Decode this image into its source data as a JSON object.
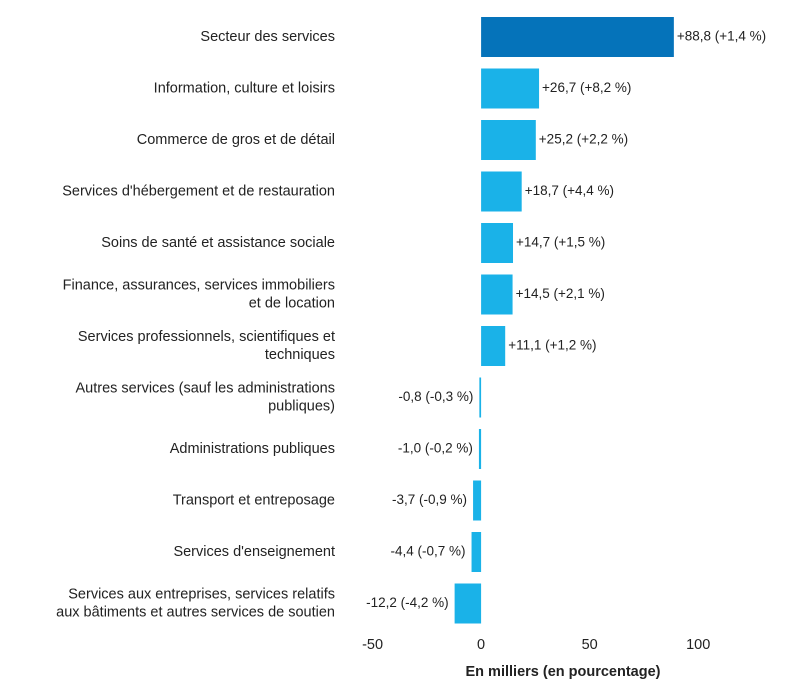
{
  "chart_data": {
    "type": "hbar",
    "categories": [
      "Secteur des services",
      "Information, culture et loisirs",
      "Commerce de gros et de détail",
      "Services d'hébergement et de restauration",
      "Soins de santé et assistance sociale",
      "Finance, assurances, services immobiliers\net de location",
      "Services professionnels, scientifiques et\ntechniques",
      "Autres services (sauf les administrations\npubliques)",
      "Administrations publiques",
      "Transport et entreposage",
      "Services d'enseignement",
      "Services aux entreprises, services relatifs\naux bâtiments et autres services de soutien"
    ],
    "values": [
      88.8,
      26.7,
      25.2,
      18.7,
      14.7,
      14.5,
      11.1,
      -0.8,
      -1.0,
      -3.7,
      -4.4,
      -12.2
    ],
    "value_labels": [
      "+88,8 (+1,4 %)",
      "+26,7 (+8,2 %)",
      "+25,2 (+2,2 %)",
      "+18,7 (+4,4 %)",
      "+14,7 (+1,5 %)",
      "+14,5 (+2,1 %)",
      "+11,1 (+1,2 %)",
      "-0,8 (-0,3 %)",
      "-1,0 (-0,2 %)",
      "-3,7 (-0,9 %)",
      "-4,4 (-0,7 %)",
      "-12,2 (-4,2 %)"
    ],
    "colors": [
      "#0573ba",
      "#1ab2e8",
      "#1ab2e8",
      "#1ab2e8",
      "#1ab2e8",
      "#1ab2e8",
      "#1ab2e8",
      "#1ab2e8",
      "#1ab2e8",
      "#1ab2e8",
      "#1ab2e8",
      "#1ab2e8"
    ],
    "xlabel": "En milliers (en pourcentage)",
    "xlim": [
      -65,
      140
    ],
    "xticks": [
      -50,
      0,
      50,
      100
    ]
  }
}
